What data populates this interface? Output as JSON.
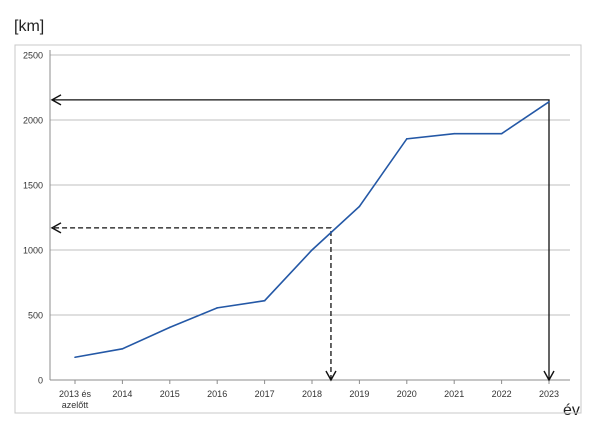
{
  "chart_data": {
    "type": "line",
    "ylabel": "[km]",
    "xlabel": "év",
    "ylim": [
      0,
      2500
    ],
    "yticks": [
      0,
      500,
      1000,
      1500,
      2000,
      2500
    ],
    "grid": true,
    "categories": [
      [
        "2013 és",
        "azelőtt"
      ],
      [
        "2014"
      ],
      [
        "2015"
      ],
      [
        "2016"
      ],
      [
        "2017"
      ],
      [
        "2018"
      ],
      [
        "2019"
      ],
      [
        "2020"
      ],
      [
        "2021"
      ],
      [
        "2022"
      ],
      [
        "2023"
      ]
    ],
    "series": [
      {
        "color": "#2458a6",
        "values": [
          175,
          240,
          405,
          555,
          610,
          1000,
          1335,
          1855,
          1895,
          1895,
          2140
        ]
      }
    ],
    "annotations": [
      {
        "style": "dashed",
        "x": 5.4,
        "y": 1170
      },
      {
        "style": "solid",
        "x": 10,
        "y": 2155
      }
    ]
  }
}
